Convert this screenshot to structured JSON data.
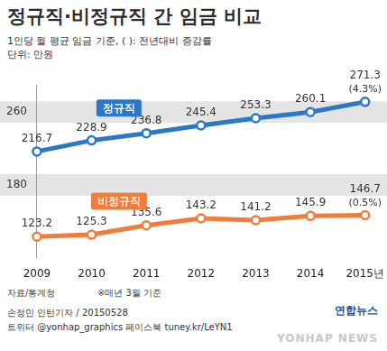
{
  "chart_data": {
    "type": "line",
    "title": "정규직·비정규직 간 임금 비교",
    "subtitle": "1인당 월 평균 임금 기준, ( ): 전년대비 증감률",
    "unit": "단위: 만원",
    "categories": [
      "2009",
      "2010",
      "2011",
      "2012",
      "2013",
      "2014",
      "2015년"
    ],
    "series": [
      {
        "name": "정규직",
        "color": "#2b78c5",
        "marker": "circle",
        "values": [
          216.7,
          228.9,
          236.8,
          245.4,
          253.3,
          260.1,
          271.3
        ],
        "change": {
          "value": 4.3,
          "label": "(4.3%)"
        }
      },
      {
        "name": "비정규직",
        "color": "#f07d3c",
        "marker": "circle",
        "values": [
          123.2,
          125.3,
          135.6,
          143.2,
          141.2,
          145.9,
          146.7
        ],
        "change": {
          "value": 0.5,
          "label": "(0.5%)"
        }
      }
    ],
    "ylim": [
      100,
      290
    ],
    "yticks": [
      180,
      260
    ],
    "grid": true,
    "data_labels": true,
    "source": "자료/통계청",
    "note": "※매년 3월 기준",
    "credit": "손정민 인턴기자 / 20150528",
    "social": "트위터 @yonhap_graphics 페이스북 tuney.kr/LeYN1",
    "logo": "연합뉴스",
    "watermark": "YONHAP NEWS"
  }
}
